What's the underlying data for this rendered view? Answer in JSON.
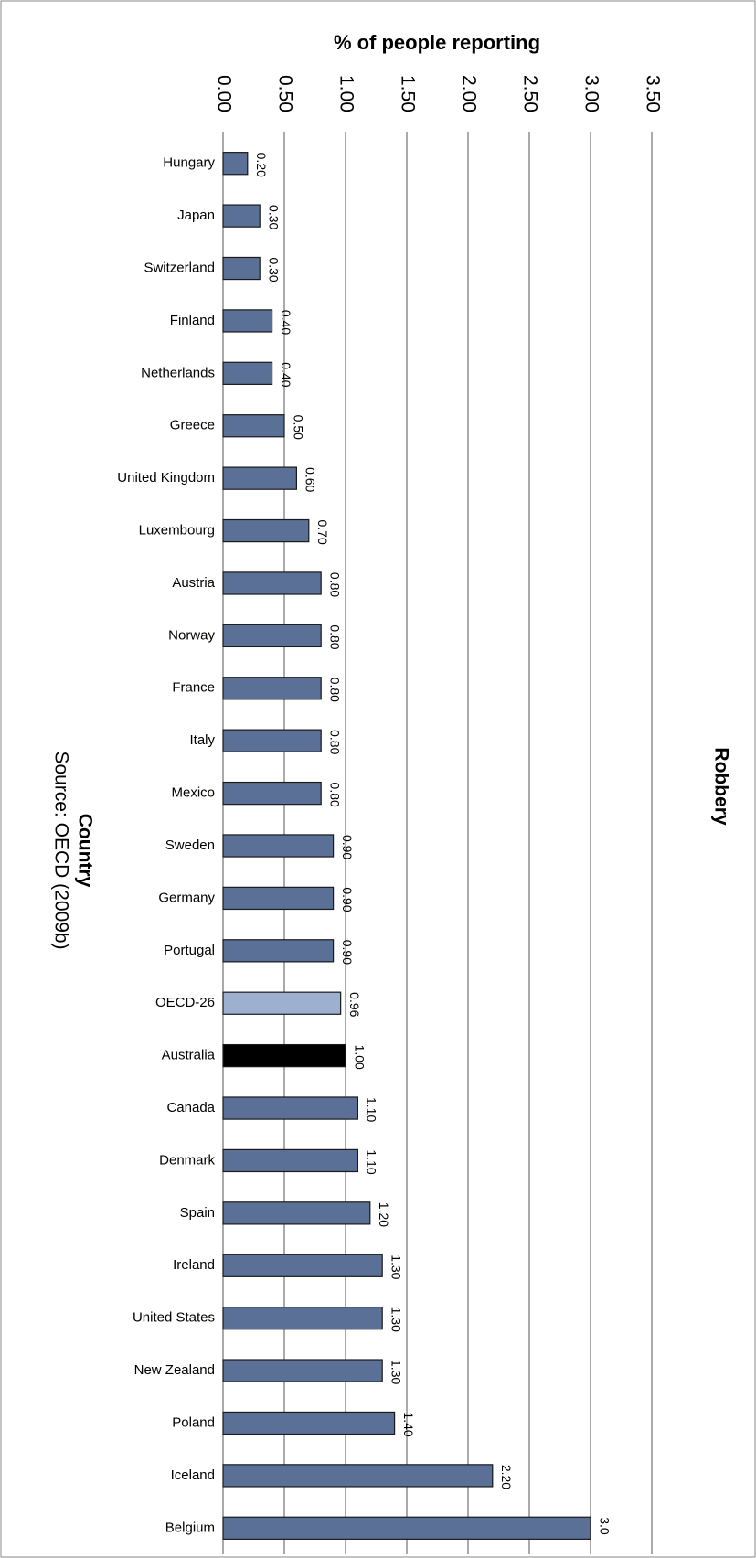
{
  "chart_data": {
    "type": "bar",
    "orientation": "horizontal",
    "title": "Robbery",
    "x_label": "% of people reporting",
    "y_label": "Country",
    "source": "Source: OECD (2009b)",
    "categories": [
      "Hungary",
      "Japan",
      "Switzerland",
      "Finland",
      "Netherlands",
      "Greece",
      "United Kingdom",
      "Luxembourg",
      "Austria",
      "Norway",
      "France",
      "Italy",
      "Mexico",
      "Sweden",
      "Germany",
      "Portugal",
      "OECD-26",
      "Australia",
      "Canada",
      "Denmark",
      "Spain",
      "Ireland",
      "United States",
      "New Zealand",
      "Poland",
      "Iceland",
      "Belgium"
    ],
    "values": [
      0.2,
      0.3,
      0.3,
      0.4,
      0.4,
      0.5,
      0.6,
      0.7,
      0.8,
      0.8,
      0.8,
      0.8,
      0.8,
      0.9,
      0.9,
      0.9,
      0.96,
      1.0,
      1.1,
      1.1,
      1.2,
      1.3,
      1.3,
      1.3,
      1.4,
      2.2,
      3.0
    ],
    "value_labels": [
      "0.20",
      "0.30",
      "0.30",
      "0.40",
      "0.40",
      "0.50",
      "0.60",
      "0.70",
      "0.80",
      "0.80",
      "0.80",
      "0.80",
      "0.80",
      "0.90",
      "0.90",
      "0.90",
      "0.96",
      "1.00",
      "1.10",
      "1.10",
      "1.20",
      "1.30",
      "1.30",
      "1.30",
      "1.40",
      "2.20",
      "3.0"
    ],
    "colors": [
      "#5b7096",
      "#5b7096",
      "#5b7096",
      "#5b7096",
      "#5b7096",
      "#5b7096",
      "#5b7096",
      "#5b7096",
      "#5b7096",
      "#5b7096",
      "#5b7096",
      "#5b7096",
      "#5b7096",
      "#5b7096",
      "#5b7096",
      "#5b7096",
      "#9db0cf",
      "#000000",
      "#5b7096",
      "#5b7096",
      "#5b7096",
      "#5b7096",
      "#5b7096",
      "#5b7096",
      "#5b7096",
      "#5b7096",
      "#5b7096"
    ],
    "xlim": [
      0,
      3.5
    ],
    "xticks": [
      {
        "value": 0,
        "label": "0.00"
      },
      {
        "value": 0.5,
        "label": "0.50"
      },
      {
        "value": 1,
        "label": "1.00"
      },
      {
        "value": 1.5,
        "label": "1.50"
      },
      {
        "value": 2,
        "label": "2.00"
      },
      {
        "value": 2.5,
        "label": "2.50"
      },
      {
        "value": 3,
        "label": "3.00"
      },
      {
        "value": 3.5,
        "label": "3.50"
      }
    ],
    "grid": true
  }
}
